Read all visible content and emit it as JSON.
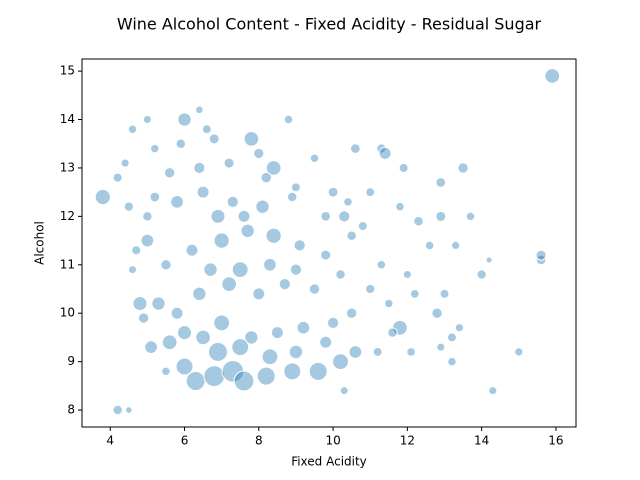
{
  "chart_data": {
    "type": "scatter",
    "title": "Wine Alcohol Content - Fixed Acidity - Residual Sugar",
    "x_label": "Fixed Acidity",
    "y_label": "Alcohol",
    "color": "#1f77b4",
    "xlim": [
      3.24,
      16.54
    ],
    "ylim": [
      7.65,
      15.25
    ],
    "xticks": [
      4,
      6,
      8,
      10,
      12,
      14,
      16
    ],
    "yticks": [
      8,
      9,
      10,
      11,
      12,
      13,
      14,
      15
    ],
    "x": [
      15.9,
      3.8,
      4.2,
      4.5,
      14.3,
      15.0,
      15.6,
      15.6,
      14.0,
      14.2,
      13.5,
      12.9,
      12.9,
      13.7,
      11.3,
      11.4,
      10.6,
      10.0,
      11.9,
      11.8,
      12.3,
      12.6,
      13.3,
      12.8,
      13.0,
      13.2,
      13.4,
      13.2,
      12.1,
      12.9,
      11.8,
      11.6,
      10.6,
      11.2,
      10.3,
      8.8,
      6.4,
      6.0,
      5.0,
      4.6,
      4.2,
      4.4,
      4.5,
      5.2,
      6.8,
      7.8,
      8.0,
      8.4,
      9.5,
      5.0,
      5.3,
      5.6,
      6.0,
      6.3,
      6.8,
      7.3,
      7.6,
      8.2,
      8.9,
      9.6,
      10.2,
      6.5,
      7.0,
      7.8,
      8.5,
      9.2,
      10.0,
      10.5,
      5.8,
      6.4,
      7.2,
      8.0,
      8.7,
      9.5,
      10.2,
      11.0,
      11.5,
      12.2,
      5.5,
      6.2,
      7.0,
      7.7,
      8.4,
      9.1,
      9.8,
      10.5,
      11.3,
      12.0,
      5.0,
      5.8,
      6.5,
      7.3,
      8.1,
      8.9,
      9.8,
      10.3,
      10.8,
      5.6,
      6.4,
      7.2,
      8.2,
      9.0,
      5.9,
      6.6,
      5.2,
      4.8,
      4.9,
      5.1,
      5.5,
      6.0,
      6.9,
      7.5,
      8.3,
      9.0,
      9.8,
      6.7,
      7.5,
      8.3,
      9.0,
      6.9,
      7.6,
      4.7,
      4.6,
      11.0,
      10.4
    ],
    "y": [
      14.9,
      12.4,
      8.0,
      8.0,
      8.4,
      9.2,
      11.1,
      11.2,
      10.8,
      11.1,
      13.0,
      12.7,
      12.0,
      12.0,
      13.4,
      13.3,
      13.4,
      12.5,
      13.0,
      12.2,
      11.9,
      11.4,
      11.4,
      10.0,
      10.4,
      9.5,
      9.7,
      9.0,
      9.2,
      9.3,
      9.7,
      9.6,
      9.2,
      9.2,
      8.4,
      14.0,
      14.2,
      14.0,
      14.0,
      13.8,
      12.8,
      13.1,
      12.2,
      12.4,
      13.6,
      13.6,
      13.3,
      13.0,
      13.2,
      11.5,
      10.2,
      9.4,
      8.9,
      8.6,
      8.7,
      8.8,
      8.6,
      8.7,
      8.8,
      8.8,
      9.0,
      9.5,
      9.8,
      9.5,
      9.6,
      9.7,
      9.8,
      10.0,
      10.0,
      10.4,
      10.6,
      10.4,
      10.6,
      10.5,
      10.8,
      10.5,
      10.2,
      10.4,
      11.0,
      11.3,
      11.5,
      11.7,
      11.6,
      11.4,
      11.2,
      11.6,
      11.0,
      10.8,
      12.0,
      12.3,
      12.5,
      12.3,
      12.2,
      12.4,
      12.0,
      12.0,
      11.8,
      12.9,
      13.0,
      13.1,
      12.8,
      12.6,
      13.5,
      13.8,
      13.4,
      10.2,
      9.9,
      9.3,
      8.8,
      9.6,
      9.2,
      9.3,
      9.1,
      9.2,
      9.4,
      10.9,
      10.9,
      11.0,
      10.9,
      12.0,
      12.0,
      11.3,
      10.9,
      12.5,
      12.3
    ],
    "sizes": [
      6,
      6.5,
      2.5,
      1.2,
      1.8,
      1.9,
      2.6,
      2.8,
      2.4,
      1.0,
      3.0,
      2.6,
      2.8,
      2.0,
      2.4,
      4.0,
      2.6,
      2.7,
      2.3,
      2.0,
      2.5,
      2.0,
      1.9,
      3.0,
      2.2,
      2.2,
      1.9,
      2.0,
      2.1,
      1.8,
      6.0,
      2.5,
      4.5,
      2.2,
      1.8,
      2.0,
      1.6,
      5.0,
      1.8,
      2.0,
      2.3,
      1.9,
      2.4,
      2.6,
      2.8,
      6.0,
      3.0,
      6.0,
      2.0,
      4.5,
      5.0,
      6.0,
      8.0,
      10.0,
      12.0,
      13.0,
      11.0,
      9.0,
      8.0,
      9.0,
      7.0,
      6.0,
      7.0,
      5.0,
      4.0,
      4.5,
      3.5,
      3.0,
      4.0,
      5.0,
      6.0,
      4.0,
      3.5,
      3.0,
      2.5,
      2.4,
      2.0,
      2.1,
      3.0,
      4.0,
      6.5,
      5.0,
      6.5,
      3.5,
      2.8,
      2.5,
      2.0,
      1.8,
      2.5,
      4.5,
      4.0,
      3.5,
      5.0,
      2.5,
      2.6,
      3.5,
      2.3,
      3.0,
      3.5,
      2.8,
      3.0,
      2.2,
      2.5,
      2.2,
      2.0,
      5.5,
      3.0,
      4.5,
      2.0,
      5.5,
      10.0,
      8.0,
      7.0,
      5.0,
      4.0,
      5.0,
      7.0,
      4.5,
      3.5,
      5.5,
      4.0,
      2.3,
      1.8,
      2.2,
      2.0
    ]
  }
}
